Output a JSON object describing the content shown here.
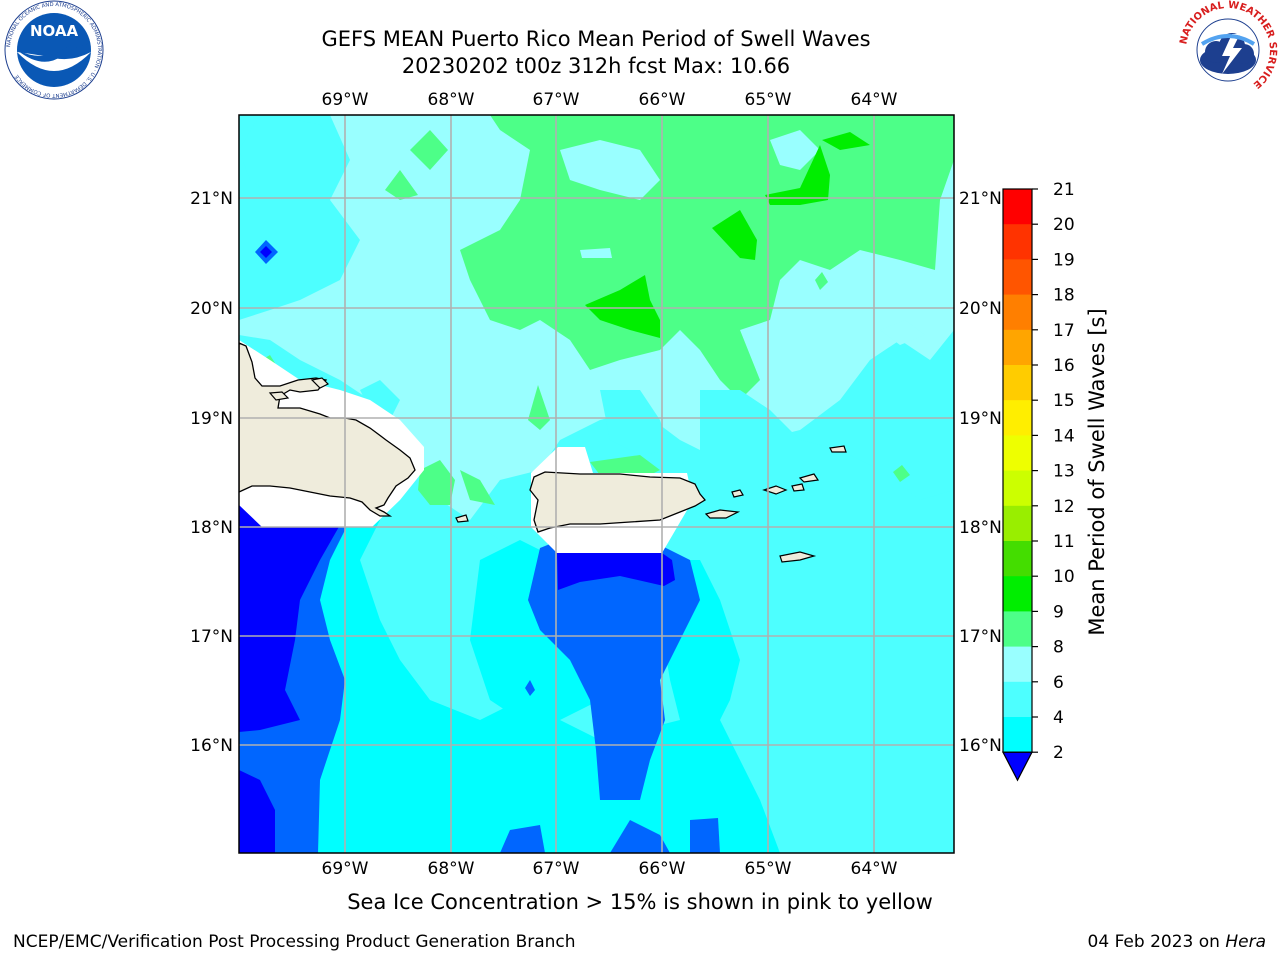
{
  "title": {
    "line1": "GEFS MEAN Puerto Rico Mean Period of Swell Waves",
    "line2": "20230202 t00z 312h fcst   Max: 10.66"
  },
  "map": {
    "lon_ticks": [
      "69°W",
      "68°W",
      "67°W",
      "66°W",
      "65°W",
      "64°W"
    ],
    "lat_ticks": [
      "21°N",
      "20°N",
      "19°N",
      "18°N",
      "17°N",
      "16°N"
    ],
    "ocean_colors": {
      "band_2_4": "#0066ff",
      "band_4_6": "#00ffff",
      "band_6_8": "#4dffff",
      "band_8_9": "#99ffff",
      "band_9_10": "#4dff88",
      "band_10_11": "#00ee00",
      "below_2": "#0000ff",
      "land": "#efecdc",
      "grid": "#b0b0b0"
    }
  },
  "colorbar": {
    "label": "Mean Period of Swell Waves [s]",
    "ticks": [
      "21",
      "20",
      "19",
      "18",
      "17",
      "16",
      "15",
      "14",
      "13",
      "12",
      "11",
      "10",
      "9",
      "8",
      "6",
      "4",
      "2"
    ],
    "colors": [
      "#ff0000",
      "#ff3300",
      "#ff5500",
      "#ff7f00",
      "#ffa500",
      "#ffcc00",
      "#ffee00",
      "#eeff00",
      "#ccff00",
      "#99ee00",
      "#44dd00",
      "#00ee00",
      "#4dff88",
      "#99ffff",
      "#4dffff",
      "#00ffff",
      "#0066ff"
    ],
    "extend_color": "#0000ff"
  },
  "caption": "Sea Ice Concentration > 15% is shown in pink to yellow",
  "footer": {
    "left": "NCEP/EMC/Verification Post Processing Product Generation Branch",
    "right_date": "04 Feb 2023 on ",
    "right_host": "Hera"
  },
  "logos": {
    "noaa": "NOAA",
    "noaa_ring": "NATIONAL OCEANIC AND ATMOSPHERIC ADMINISTRATION · U.S. DEPARTMENT OF COMMERCE",
    "nws_ring": "NATIONAL WEATHER SERVICE"
  }
}
